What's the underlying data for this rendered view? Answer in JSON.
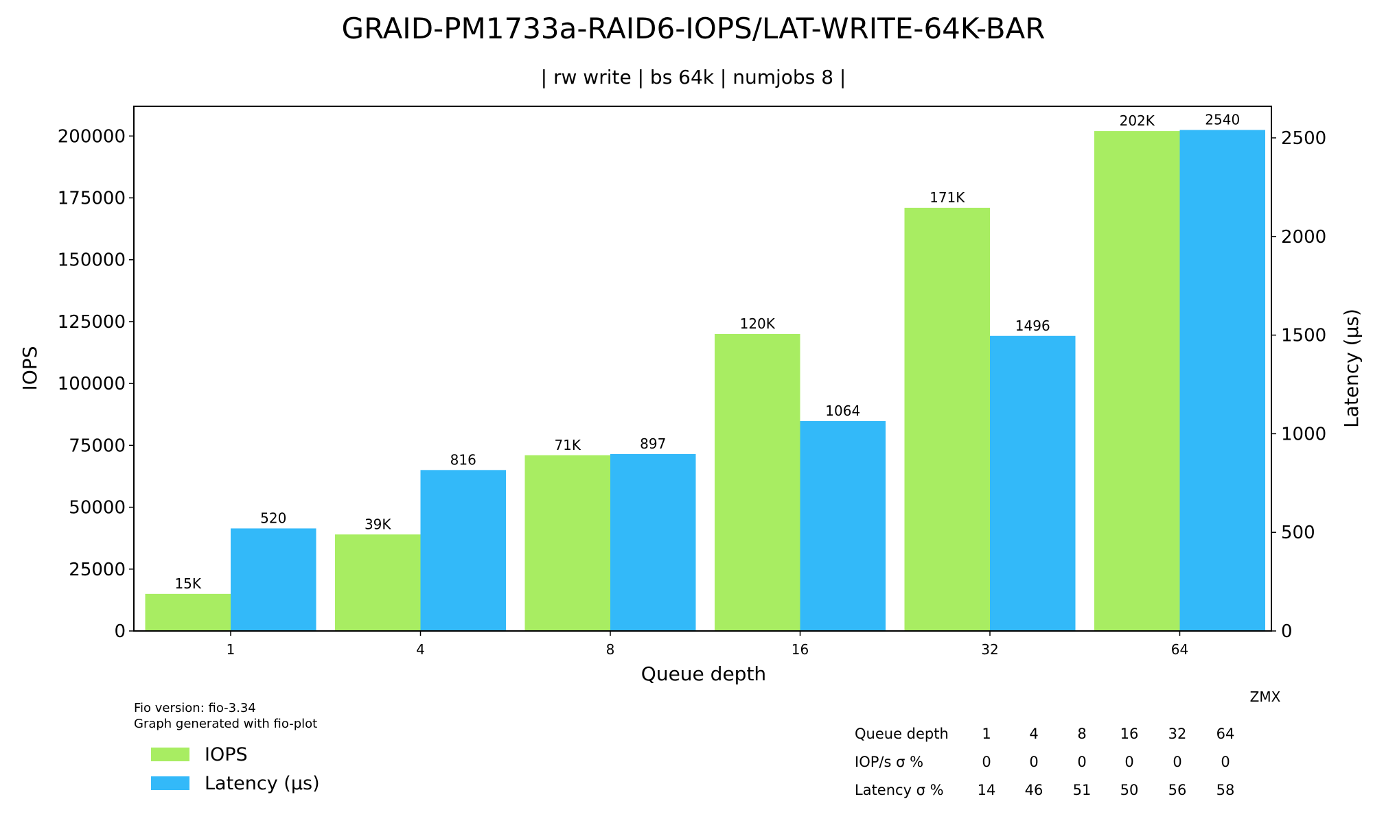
{
  "chart_data": {
    "type": "bar",
    "title": "GRAID-PM1733a-RAID6-IOPS/LAT-WRITE-64K-BAR",
    "subtitle": "| rw write | bs 64k | numjobs 8 |",
    "xlabel": "Queue depth",
    "ylabel": "IOPS",
    "y2label": "Latency (µs)",
    "categories": [
      "1",
      "4",
      "8",
      "16",
      "32",
      "64"
    ],
    "ylim": [
      0,
      212000
    ],
    "y2lim": [
      0,
      2660
    ],
    "yticks": [
      0,
      25000,
      50000,
      75000,
      100000,
      125000,
      150000,
      175000,
      200000
    ],
    "y2ticks": [
      0,
      500,
      1000,
      1500,
      2000,
      2500
    ],
    "legend_position": "bottom-left",
    "series": [
      {
        "name": "IOPS",
        "axis": "left",
        "color": "#a8ed62",
        "values": [
          15000,
          39000,
          71000,
          120000,
          171000,
          202000
        ],
        "labels": [
          "15K",
          "39K",
          "71K",
          "120K",
          "171K",
          "202K"
        ]
      },
      {
        "name": "Latency (µs)",
        "axis": "right",
        "color": "#33b9f9",
        "values": [
          520,
          816,
          897,
          1064,
          1496,
          2540
        ],
        "labels": [
          "520",
          "816",
          "897",
          "1064",
          "1496",
          "2540"
        ]
      }
    ]
  },
  "footer": {
    "fio_version": "Fio version: fio-3.34",
    "generated_by": "Graph generated with fio-plot",
    "author": "ZMX"
  },
  "stats_table": {
    "rows": [
      [
        "Queue depth",
        "1",
        "4",
        "8",
        "16",
        "32",
        "64"
      ],
      [
        "IOP/s σ %",
        "0",
        "0",
        "0",
        "0",
        "0",
        "0"
      ],
      [
        "Latency σ %",
        "14",
        "46",
        "51",
        "50",
        "56",
        "58"
      ]
    ]
  }
}
